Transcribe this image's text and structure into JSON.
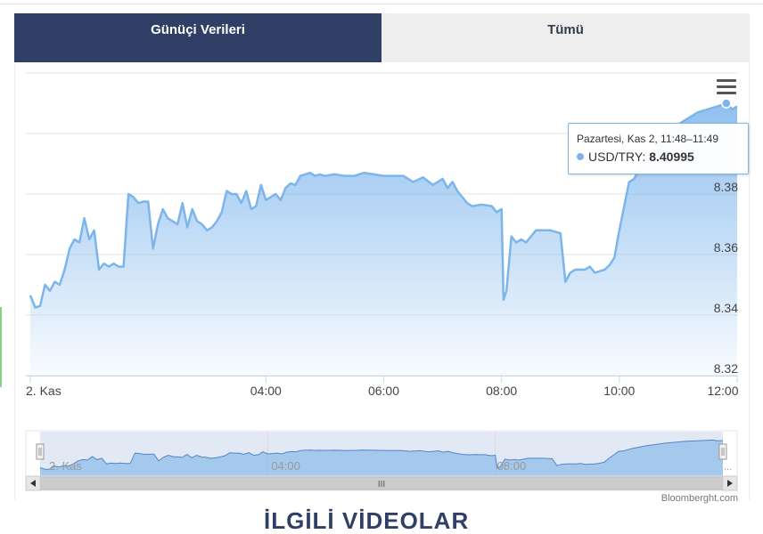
{
  "tabs": [
    {
      "label": "Günüçi Verileri",
      "active": true
    },
    {
      "label": "Tümü",
      "active": false
    }
  ],
  "tooltip": {
    "time": "Pazartesi, Kas 2, 11:48–11:49",
    "series": "USD/TRY",
    "value": "8.40995"
  },
  "credit": "Bloomberght.com",
  "section_heading": "İLGİLİ VİDEOLAR",
  "navigator": {
    "tick_labels": [
      "2. Kas",
      "04:00",
      "08:00"
    ],
    "scrollbar_grip": "III"
  },
  "colors": {
    "tab_active_bg": "#2f3f66",
    "tab_inactive_bg": "#eeeeee",
    "series_line": "#7cb5ec"
  },
  "icons": {
    "menu": "hamburger-icon",
    "scroll_left": "arrow-left-icon",
    "scroll_right": "arrow-right-icon"
  },
  "chart_data": {
    "type": "area",
    "title": "",
    "xlabel": "",
    "ylabel": "",
    "x_axis": {
      "min": "00:00",
      "max": "12:00",
      "ticks": [
        {
          "x": "00:00",
          "label": "2. Kas"
        },
        {
          "x": "04:00",
          "label": "04:00"
        },
        {
          "x": "06:00",
          "label": "06:00"
        },
        {
          "x": "08:00",
          "label": "08:00"
        },
        {
          "x": "10:00",
          "label": "10:00"
        },
        {
          "x": "12:00",
          "label": "12:00"
        }
      ]
    },
    "y_axis": {
      "min": 8.32,
      "max": 8.42,
      "ticks": [
        "8.32",
        "8.34",
        "8.36",
        "8.38"
      ],
      "side": "right",
      "grid": true
    },
    "series": [
      {
        "name": "USD/TRY",
        "points": [
          [
            "00:00",
            8.3465
          ],
          [
            "00:05",
            8.3425
          ],
          [
            "00:10",
            8.343
          ],
          [
            "00:15",
            8.35
          ],
          [
            "00:20",
            8.348
          ],
          [
            "00:25",
            8.351
          ],
          [
            "00:30",
            8.35
          ],
          [
            "00:35",
            8.355
          ],
          [
            "00:40",
            8.362
          ],
          [
            "00:45",
            8.365
          ],
          [
            "00:50",
            8.364
          ],
          [
            "00:55",
            8.372
          ],
          [
            "01:00",
            8.365
          ],
          [
            "01:05",
            8.368
          ],
          [
            "01:10",
            8.355
          ],
          [
            "01:15",
            8.357
          ],
          [
            "01:20",
            8.356
          ],
          [
            "01:25",
            8.357
          ],
          [
            "01:30",
            8.356
          ],
          [
            "01:35",
            8.356
          ],
          [
            "01:40",
            8.38
          ],
          [
            "01:45",
            8.379
          ],
          [
            "01:50",
            8.377
          ],
          [
            "01:55",
            8.3775
          ],
          [
            "02:00",
            8.3775
          ],
          [
            "02:05",
            8.362
          ],
          [
            "02:10",
            8.37
          ],
          [
            "02:15",
            8.375
          ],
          [
            "02:20",
            8.372
          ],
          [
            "02:25",
            8.371
          ],
          [
            "02:30",
            8.37
          ],
          [
            "02:35",
            8.377
          ],
          [
            "02:40",
            8.369
          ],
          [
            "02:45",
            8.375
          ],
          [
            "02:50",
            8.371
          ],
          [
            "02:55",
            8.37
          ],
          [
            "03:00",
            8.368
          ],
          [
            "03:05",
            8.369
          ],
          [
            "03:10",
            8.371
          ],
          [
            "03:15",
            8.374
          ],
          [
            "03:20",
            8.381
          ],
          [
            "03:25",
            8.38
          ],
          [
            "03:30",
            8.38
          ],
          [
            "03:35",
            8.377
          ],
          [
            "03:40",
            8.381
          ],
          [
            "03:45",
            8.375
          ],
          [
            "03:50",
            8.376
          ],
          [
            "03:55",
            8.383
          ],
          [
            "04:00",
            8.378
          ],
          [
            "04:05",
            8.379
          ],
          [
            "04:10",
            8.38
          ],
          [
            "04:15",
            8.378
          ],
          [
            "04:20",
            8.382
          ],
          [
            "04:25",
            8.3835
          ],
          [
            "04:30",
            8.383
          ],
          [
            "04:35",
            8.386
          ],
          [
            "04:40",
            8.3865
          ],
          [
            "04:45",
            8.387
          ],
          [
            "04:50",
            8.386
          ],
          [
            "04:55",
            8.3865
          ],
          [
            "05:00",
            8.386
          ],
          [
            "05:10",
            8.3865
          ],
          [
            "05:20",
            8.386
          ],
          [
            "05:30",
            8.386
          ],
          [
            "05:40",
            8.387
          ],
          [
            "05:50",
            8.3865
          ],
          [
            "06:00",
            8.386
          ],
          [
            "06:10",
            8.386
          ],
          [
            "06:20",
            8.386
          ],
          [
            "06:30",
            8.384
          ],
          [
            "06:40",
            8.3855
          ],
          [
            "06:50",
            8.383
          ],
          [
            "07:00",
            8.385
          ],
          [
            "07:05",
            8.382
          ],
          [
            "07:10",
            8.384
          ],
          [
            "07:15",
            8.381
          ],
          [
            "07:20",
            8.379
          ],
          [
            "07:25",
            8.377
          ],
          [
            "07:30",
            8.376
          ],
          [
            "07:40",
            8.3765
          ],
          [
            "07:50",
            8.376
          ],
          [
            "07:55",
            8.374
          ],
          [
            "08:00",
            8.375
          ],
          [
            "08:02",
            8.345
          ],
          [
            "08:05",
            8.348
          ],
          [
            "08:10",
            8.366
          ],
          [
            "08:15",
            8.364
          ],
          [
            "08:20",
            8.365
          ],
          [
            "08:25",
            8.364
          ],
          [
            "08:30",
            8.366
          ],
          [
            "08:35",
            8.368
          ],
          [
            "08:40",
            8.368
          ],
          [
            "08:50",
            8.368
          ],
          [
            "09:00",
            8.367
          ],
          [
            "09:05",
            8.351
          ],
          [
            "09:10",
            8.354
          ],
          [
            "09:15",
            8.355
          ],
          [
            "09:20",
            8.355
          ],
          [
            "09:25",
            8.355
          ],
          [
            "09:30",
            8.356
          ],
          [
            "09:35",
            8.354
          ],
          [
            "09:40",
            8.3545
          ],
          [
            "09:45",
            8.355
          ],
          [
            "09:50",
            8.3565
          ],
          [
            "09:55",
            8.359
          ],
          [
            "10:00",
            8.368
          ],
          [
            "10:05",
            8.376
          ],
          [
            "10:10",
            8.384
          ],
          [
            "10:15",
            8.385
          ],
          [
            "10:20",
            8.388
          ],
          [
            "10:25",
            8.391
          ],
          [
            "10:30",
            8.393
          ],
          [
            "10:40",
            8.397
          ],
          [
            "10:50",
            8.4
          ],
          [
            "11:00",
            8.403
          ],
          [
            "11:10",
            8.405
          ],
          [
            "11:20",
            8.407
          ],
          [
            "11:30",
            8.408
          ],
          [
            "11:40",
            8.409
          ],
          [
            "11:49",
            8.41
          ],
          [
            "11:55",
            8.408
          ],
          [
            "12:00",
            8.409
          ]
        ]
      }
    ],
    "highlight": {
      "x": "11:49",
      "y": 8.40995
    },
    "navigator": {
      "visible": true,
      "range": [
        "00:00",
        "12:00"
      ]
    },
    "legend": "none"
  }
}
